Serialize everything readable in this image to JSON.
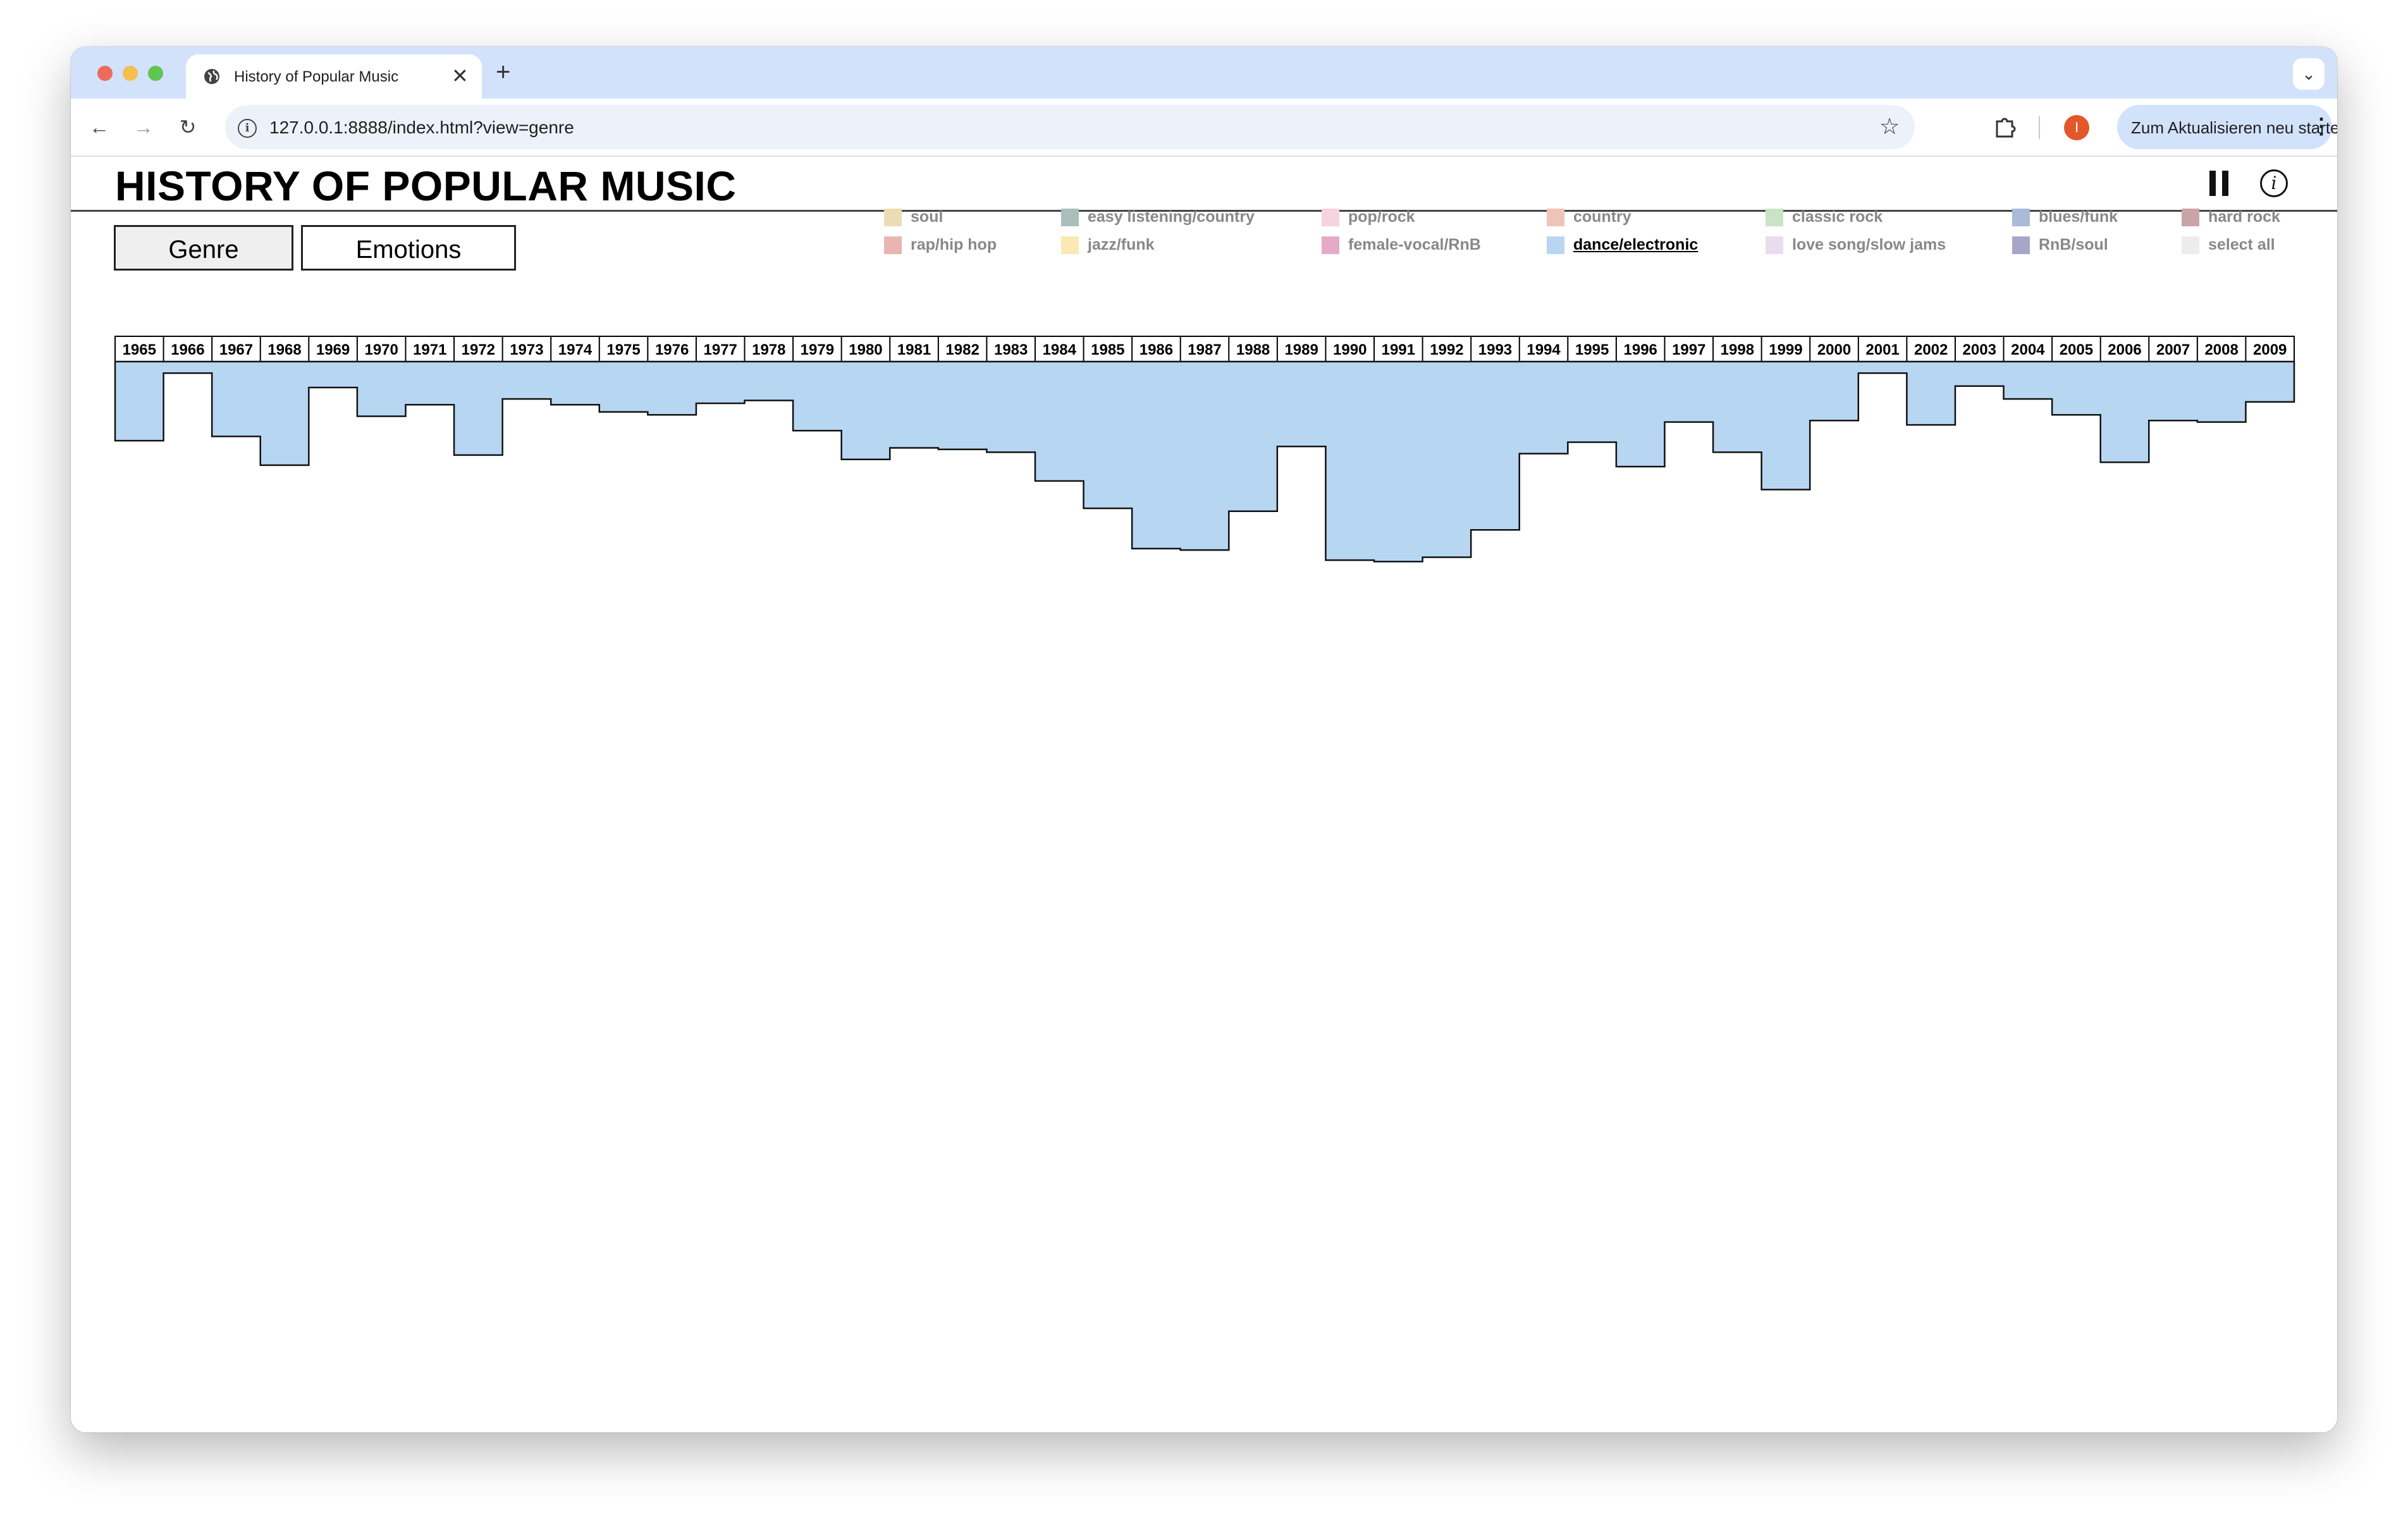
{
  "browser": {
    "tab_title": "History of Popular Music",
    "url": "127.0.0.1:8888/index.html?view=genre",
    "update_button": "Zum Aktualisieren neu starten",
    "profile_initial": "I"
  },
  "app": {
    "title": "HISTORY OF POPULAR MUSIC",
    "views": {
      "genre": "Genre",
      "emotions": "Emotions",
      "active": "Genre"
    }
  },
  "legend": [
    {
      "label": "soul",
      "color": "#ecdcb5",
      "selected": false
    },
    {
      "label": "rap/hip hop",
      "color": "#eab5b0",
      "selected": false
    },
    {
      "label": "easy listening/country",
      "color": "#a9bfbc",
      "selected": false
    },
    {
      "label": "jazz/funk",
      "color": "#fbe8b4",
      "selected": false
    },
    {
      "label": "pop/rock",
      "color": "#f6d3dd",
      "selected": false
    },
    {
      "label": "female-vocal/RnB",
      "color": "#e3aac9",
      "selected": false
    },
    {
      "label": "country",
      "color": "#eec4b8",
      "selected": false
    },
    {
      "label": "dance/electronic",
      "color": "#b7d6f2",
      "selected": true
    },
    {
      "label": "classic rock",
      "color": "#c8e3c6",
      "selected": false
    },
    {
      "label": "love song/slow jams",
      "color": "#e9dcee",
      "selected": false
    },
    {
      "label": "blues/funk",
      "color": "#a9bbd9",
      "selected": false
    },
    {
      "label": "RnB/soul",
      "color": "#a7a6c9",
      "selected": false
    },
    {
      "label": "hard rock",
      "color": "#c8a4a6",
      "selected": false
    },
    {
      "label": "select all",
      "color": "#ececec",
      "selected": false
    }
  ],
  "chart_data": {
    "type": "area",
    "step": true,
    "series": [
      {
        "name": "dance/electronic",
        "color": "#b7d6f2",
        "x": [
          "1965",
          "1966",
          "1967",
          "1968",
          "1969",
          "1970",
          "1971",
          "1972",
          "1973",
          "1974",
          "1975",
          "1976",
          "1977",
          "1978",
          "1979",
          "1980",
          "1981",
          "1982",
          "1983",
          "1984",
          "1985",
          "1986",
          "1987",
          "1988",
          "1989",
          "1990",
          "1991",
          "1992",
          "1993",
          "1994",
          "1995",
          "1996",
          "1997",
          "1998",
          "1999",
          "2000",
          "2001",
          "2002",
          "2003",
          "2004",
          "2005",
          "2006",
          "2007",
          "2008",
          "2009"
        ],
        "values": [
          55,
          8,
          52,
          72,
          18,
          38,
          30,
          65,
          26,
          30,
          35,
          37,
          29,
          27,
          48,
          68,
          60,
          61,
          63,
          83,
          102,
          130,
          131,
          104,
          59,
          138,
          139,
          136,
          117,
          64,
          56,
          73,
          42,
          63,
          89,
          41,
          8,
          44,
          17,
          26,
          37,
          70,
          41,
          42,
          28
        ]
      }
    ],
    "ylim": [
      0,
      145
    ],
    "baseline": "top",
    "grid": false
  }
}
